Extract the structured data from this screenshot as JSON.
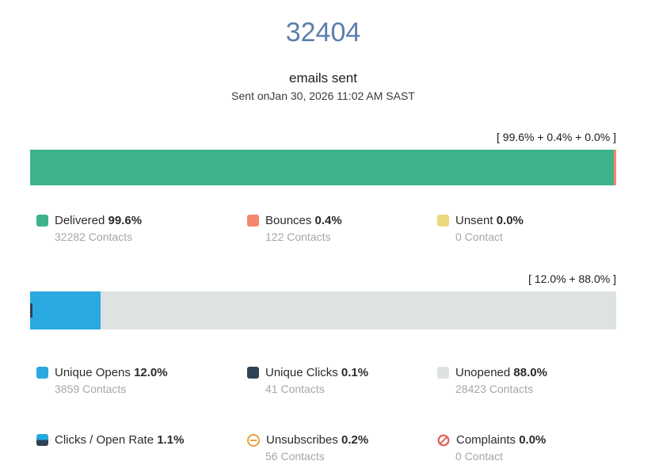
{
  "header": {
    "total": "32404",
    "subtitle": "emails sent",
    "sent_on": "Sent onJan 30, 2026 11:02 AM SAST"
  },
  "colors": {
    "title": "#5b7fad",
    "delivered": "#3eb289",
    "bounces": "#f4876c",
    "unsent": "#ecd87c",
    "opens": "#29a9e0",
    "clicks": "#2f4154",
    "unopened": "#dfe2e2",
    "unsubscribes": "#e7a33c",
    "complaints": "#e06154"
  },
  "chart_data": [
    {
      "type": "bar",
      "orientation": "horizontal_stacked",
      "annotation": "[ 99.6% + 0.4% + 0.0% ]",
      "series": [
        {
          "name": "Delivered",
          "percent": 99.6,
          "contacts": 32282,
          "color": "#3eb289"
        },
        {
          "name": "Bounces",
          "percent": 0.4,
          "contacts": 122,
          "color": "#f4876c"
        },
        {
          "name": "Unsent",
          "percent": 0.0,
          "contacts": 0,
          "color": "#ecd87c"
        }
      ]
    },
    {
      "type": "bar",
      "orientation": "horizontal_stacked",
      "annotation": "[ 12.0% + 88.0% ]",
      "series": [
        {
          "name": "Unique Opens",
          "percent": 12.0,
          "contacts": 3859,
          "color": "#29a9e0"
        },
        {
          "name": "Unique Clicks",
          "percent": 0.1,
          "contacts": 41,
          "color": "#2f4154",
          "sliver": true
        },
        {
          "name": "Unopened",
          "percent": 88.0,
          "contacts": 28423,
          "color": "#dfe2e2"
        }
      ]
    }
  ],
  "legends": {
    "row1": [
      {
        "label": "Delivered",
        "percent": "99.6%",
        "sub": "32282 Contacts",
        "swatch": "#3eb289"
      },
      {
        "label": "Bounces",
        "percent": "0.4%",
        "sub": "122 Contacts",
        "swatch": "#f4876c"
      },
      {
        "label": "Unsent",
        "percent": "0.0%",
        "sub": "0 Contact",
        "swatch": "#ecd87c"
      }
    ],
    "row2": [
      {
        "label": "Unique Opens",
        "percent": "12.0%",
        "sub": "3859 Contacts",
        "swatch": "#29a9e0"
      },
      {
        "label": "Unique Clicks",
        "percent": "0.1%",
        "sub": "41 Contacts",
        "swatch": "#2f4154"
      },
      {
        "label": "Unopened",
        "percent": "88.0%",
        "sub": "28423 Contacts",
        "swatch": "#dfe2e2"
      }
    ],
    "row3": [
      {
        "label": "Clicks / Open Rate",
        "percent": "1.1%"
      },
      {
        "label": "Unsubscribes",
        "percent": "0.2%",
        "sub": "56 Contacts"
      },
      {
        "label": "Complaints",
        "percent": "0.0%",
        "sub": "0 Contact"
      }
    ]
  }
}
